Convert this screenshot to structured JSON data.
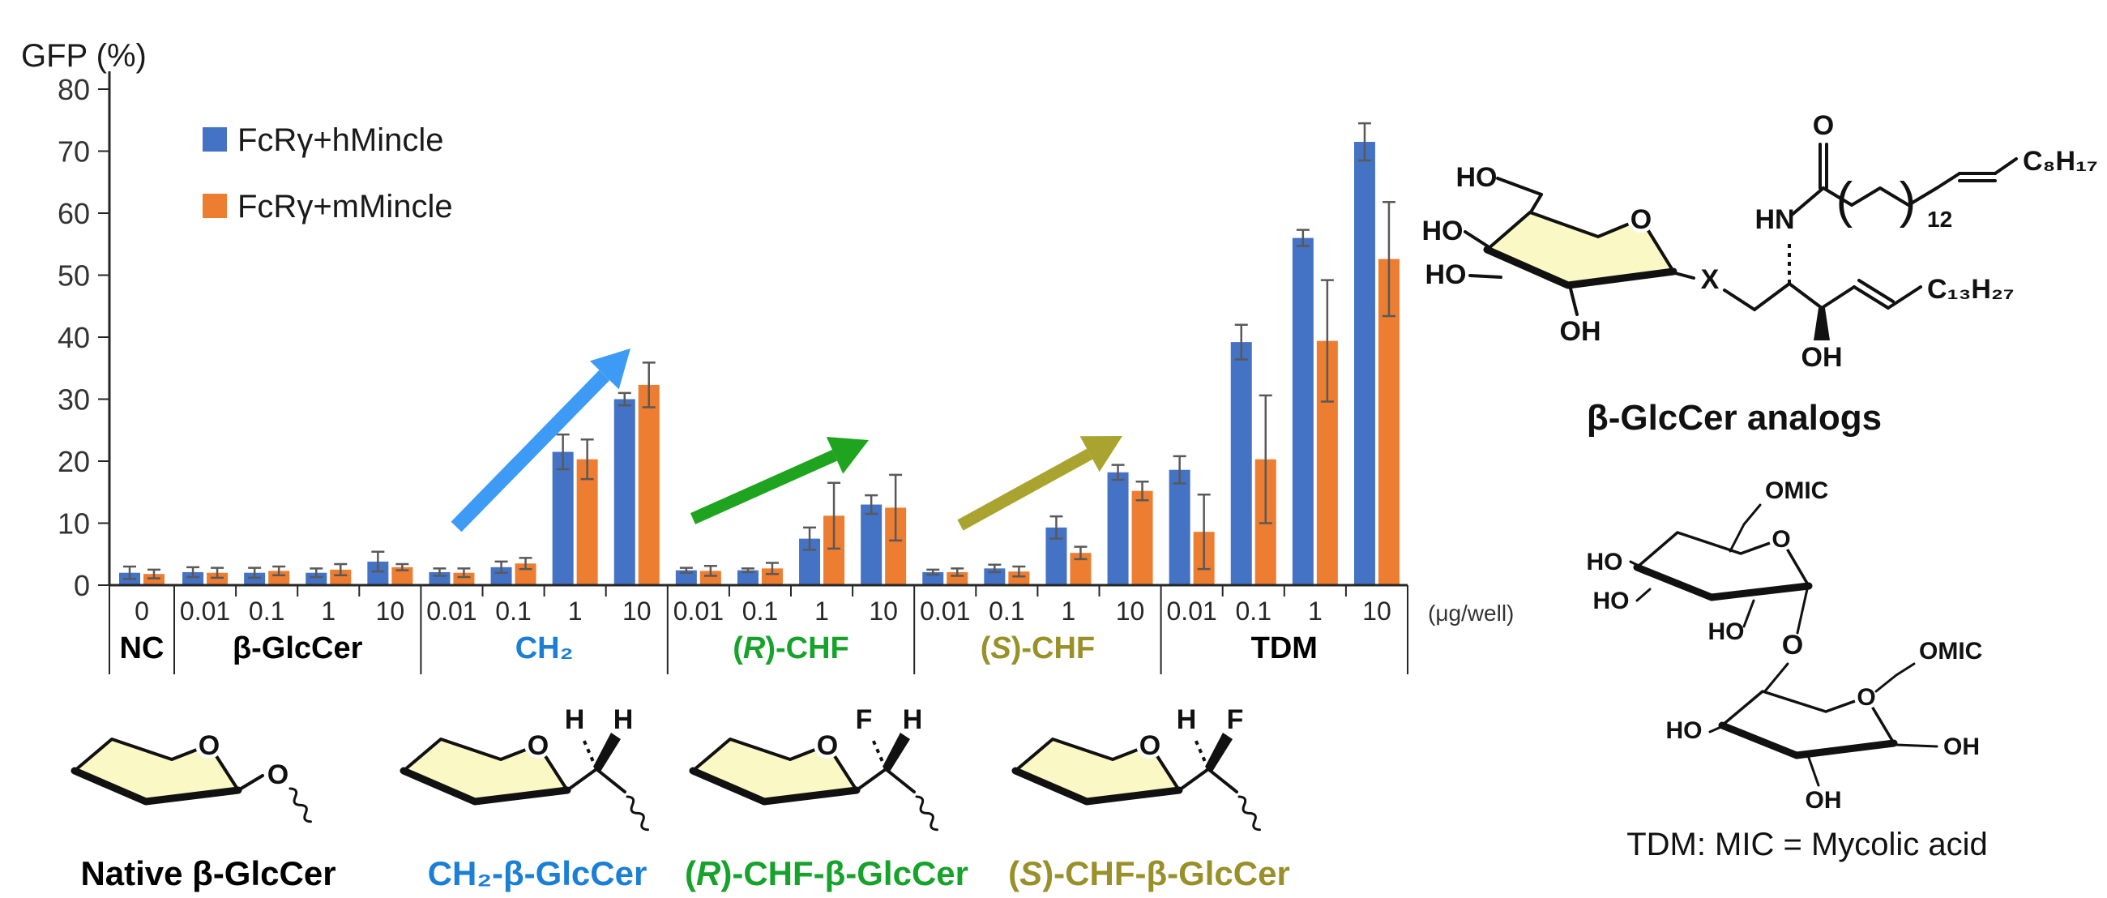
{
  "chart_data": {
    "type": "bar",
    "ylabel": "GFP (%)",
    "unit_label": "(μg/well)",
    "ylim": [
      0,
      80
    ],
    "ytick_interval": 10,
    "yticks": [
      0,
      10,
      20,
      30,
      40,
      50,
      60,
      70,
      80
    ],
    "grid": false,
    "legend_position": "top-left",
    "legend": [
      {
        "name": "FcRγ+hMincle",
        "color": "#4472C4"
      },
      {
        "name": "FcRγ+mMincle",
        "color": "#ED7D31"
      }
    ],
    "error_bar_color": "#595959",
    "groups": [
      {
        "label": {
          "pre": "NC",
          "it": "",
          "post": ""
        },
        "label_color": "#000000",
        "doses": [
          "0"
        ],
        "series": [
          {
            "name": "FcRγ+hMincle",
            "values": [
              2.0
            ],
            "errors": [
              1.0
            ]
          },
          {
            "name": "FcRγ+mMincle",
            "values": [
              1.8
            ],
            "errors": [
              0.7
            ]
          }
        ]
      },
      {
        "label": {
          "pre": "β-GlcCer",
          "it": "",
          "post": ""
        },
        "label_color": "#000000",
        "doses": [
          "0.01",
          "0.1",
          "1",
          "10"
        ],
        "series": [
          {
            "name": "FcRγ+hMincle",
            "values": [
              2.1,
              2.0,
              2.0,
              3.8
            ],
            "errors": [
              0.8,
              0.8,
              0.7,
              1.6
            ]
          },
          {
            "name": "FcRγ+mMincle",
            "values": [
              2.0,
              2.3,
              2.5,
              2.9
            ],
            "errors": [
              0.8,
              0.7,
              0.9,
              0.5
            ]
          }
        ]
      },
      {
        "label": {
          "pre": "CH₂",
          "it": "",
          "post": ""
        },
        "label_color": "#1B7FD6",
        "doses": [
          "0.01",
          "0.1",
          "1",
          "10"
        ],
        "series": [
          {
            "name": "FcRγ+hMincle",
            "values": [
              2.1,
              2.9,
              21.5,
              30.0
            ],
            "errors": [
              0.6,
              0.9,
              2.8,
              1.0
            ]
          },
          {
            "name": "FcRγ+mMincle",
            "values": [
              2.0,
              3.5,
              20.3,
              32.3
            ],
            "errors": [
              0.7,
              0.9,
              3.2,
              3.6
            ]
          }
        ]
      },
      {
        "label": {
          "pre": "(",
          "it": "R",
          "post": ")-CHF"
        },
        "label_color": "#17A22C",
        "doses": [
          "0.01",
          "0.1",
          "1",
          "10"
        ],
        "series": [
          {
            "name": "FcRγ+hMincle",
            "values": [
              2.4,
              2.4,
              7.5,
              13.0
            ],
            "errors": [
              0.4,
              0.3,
              1.8,
              1.5
            ]
          },
          {
            "name": "FcRγ+mMincle",
            "values": [
              2.3,
              2.7,
              11.2,
              12.5
            ],
            "errors": [
              0.8,
              0.9,
              5.3,
              5.3
            ]
          }
        ]
      },
      {
        "label": {
          "pre": "(",
          "it": "S",
          "post": ")-CHF"
        },
        "label_color": "#99902A",
        "doses": [
          "0.01",
          "0.1",
          "1",
          "10"
        ],
        "series": [
          {
            "name": "FcRγ+hMincle",
            "values": [
              2.1,
              2.7,
              9.3,
              18.2
            ],
            "errors": [
              0.4,
              0.6,
              1.8,
              1.2
            ]
          },
          {
            "name": "FcRγ+mMincle",
            "values": [
              2.1,
              2.2,
              5.2,
              15.2
            ],
            "errors": [
              0.6,
              0.8,
              1.0,
              1.5
            ]
          }
        ]
      },
      {
        "label": {
          "pre": "TDM",
          "it": "",
          "post": ""
        },
        "label_color": "#000000",
        "doses": [
          "0.01",
          "0.1",
          "1",
          "10"
        ],
        "series": [
          {
            "name": "FcRγ+hMincle",
            "values": [
              18.6,
              39.2,
              56.0,
              71.5
            ],
            "errors": [
              2.2,
              2.8,
              1.3,
              3.0
            ]
          },
          {
            "name": "FcRγ+mMincle",
            "values": [
              8.6,
              20.3,
              39.4,
              52.6
            ],
            "errors": [
              6.0,
              10.3,
              9.8,
              9.2
            ]
          }
        ]
      }
    ],
    "trend_arrows": [
      {
        "color": "#3E9BF5",
        "x1": 563,
        "y1": 650,
        "x2": 778,
        "y2": 430,
        "width": 18
      },
      {
        "color": "#1FA41F",
        "x1": 855,
        "y1": 640,
        "x2": 1072,
        "y2": 543,
        "width": 15
      },
      {
        "color": "#A9A42F",
        "x1": 1185,
        "y1": 648,
        "x2": 1385,
        "y2": 538,
        "width": 15
      }
    ]
  },
  "structures": {
    "analog": {
      "caption": "β-GlcCer analogs",
      "labels": {
        "ho_top": "HO",
        "ho_mid": "HO",
        "ho_low": "HO",
        "oh_ring": "OH",
        "ring_o": "O",
        "x": "X",
        "hn": "HN",
        "carbonyl_o": "O",
        "paren_open": "(",
        "paren_close": ")",
        "chain_sub": "12",
        "c8": "C₈H₁₇",
        "c13": "C₁₃H₂₇",
        "oh_chain": "OH"
      }
    },
    "tdm": {
      "caption": "TDM: MIC = Mycolic acid",
      "labels": {
        "omic_top": "OMIC",
        "omic_right": "OMIC",
        "ho_a": "HO",
        "ho_b": "HO",
        "ho_c": "HO",
        "ho_d": "HO",
        "oh_right": "OH",
        "oh_bottom": "OH",
        "ring_o_top": "O",
        "ring_o_bottom": "O",
        "glyco_o": "O"
      }
    },
    "bottom": [
      {
        "caption": {
          "pre": "Native β-GlcCer",
          "it": "",
          "post": ""
        },
        "color": "#000000",
        "ring_o": "O",
        "link_o": "O"
      },
      {
        "caption": {
          "pre": "CH₂-β-GlcCer",
          "it": "",
          "post": ""
        },
        "color": "#1B7FD6",
        "ring_o": "O",
        "left_sub": "H",
        "right_sub": "H"
      },
      {
        "caption": {
          "pre": "(",
          "it": "R",
          "post": ")-CHF-β-GlcCer"
        },
        "color": "#17A22C",
        "ring_o": "O",
        "left_sub": "F",
        "right_sub": "H"
      },
      {
        "caption": {
          "pre": "(",
          "it": "S",
          "post": ")-CHF-β-GlcCer"
        },
        "color": "#99902A",
        "ring_o": "O",
        "left_sub": "H",
        "right_sub": "F"
      }
    ]
  }
}
